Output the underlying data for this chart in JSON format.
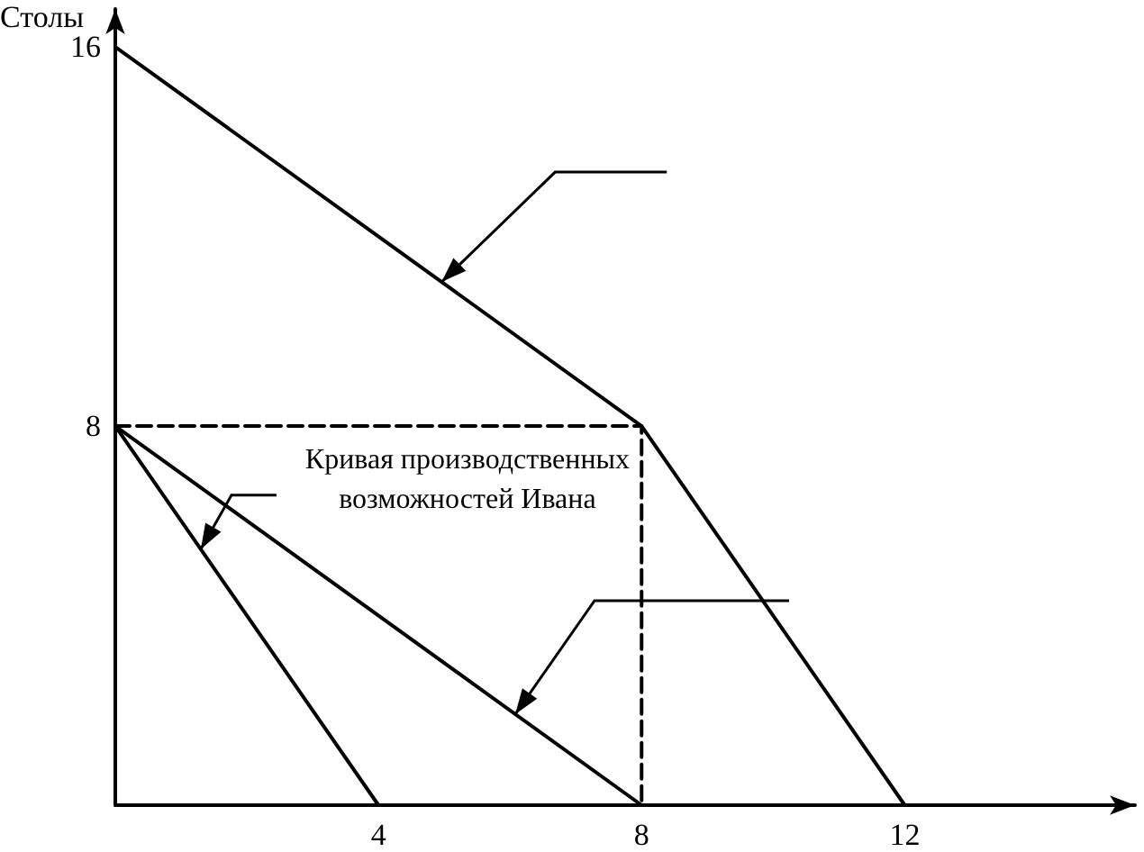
{
  "chart_data": {
    "type": "line",
    "ylabel": "Столы",
    "xlim": [
      0,
      15.5
    ],
    "ylim": [
      0,
      16.8
    ],
    "xticks": [
      4,
      8,
      12
    ],
    "yticks": [
      8,
      16
    ],
    "marker": "none",
    "annotations": [
      {
        "text": "Кривая производственных возможностей Ивана",
        "x": 1.3,
        "y": 5.4
      }
    ],
    "series": [
      {
        "color": "#000000",
        "x": [
          0,
          8,
          12
        ],
        "values": [
          16,
          8,
          0
        ]
      },
      {
        "color": "#000000",
        "x": [
          0,
          8
        ],
        "values": [
          8,
          0
        ]
      },
      {
        "color": "#000000",
        "x": [
          0,
          4
        ],
        "values": [
          8,
          0
        ]
      },
      {
        "color": "#000000",
        "x": [
          0,
          8,
          8
        ],
        "values": [
          8,
          8,
          0
        ],
        "line_style": "dashed"
      }
    ]
  }
}
